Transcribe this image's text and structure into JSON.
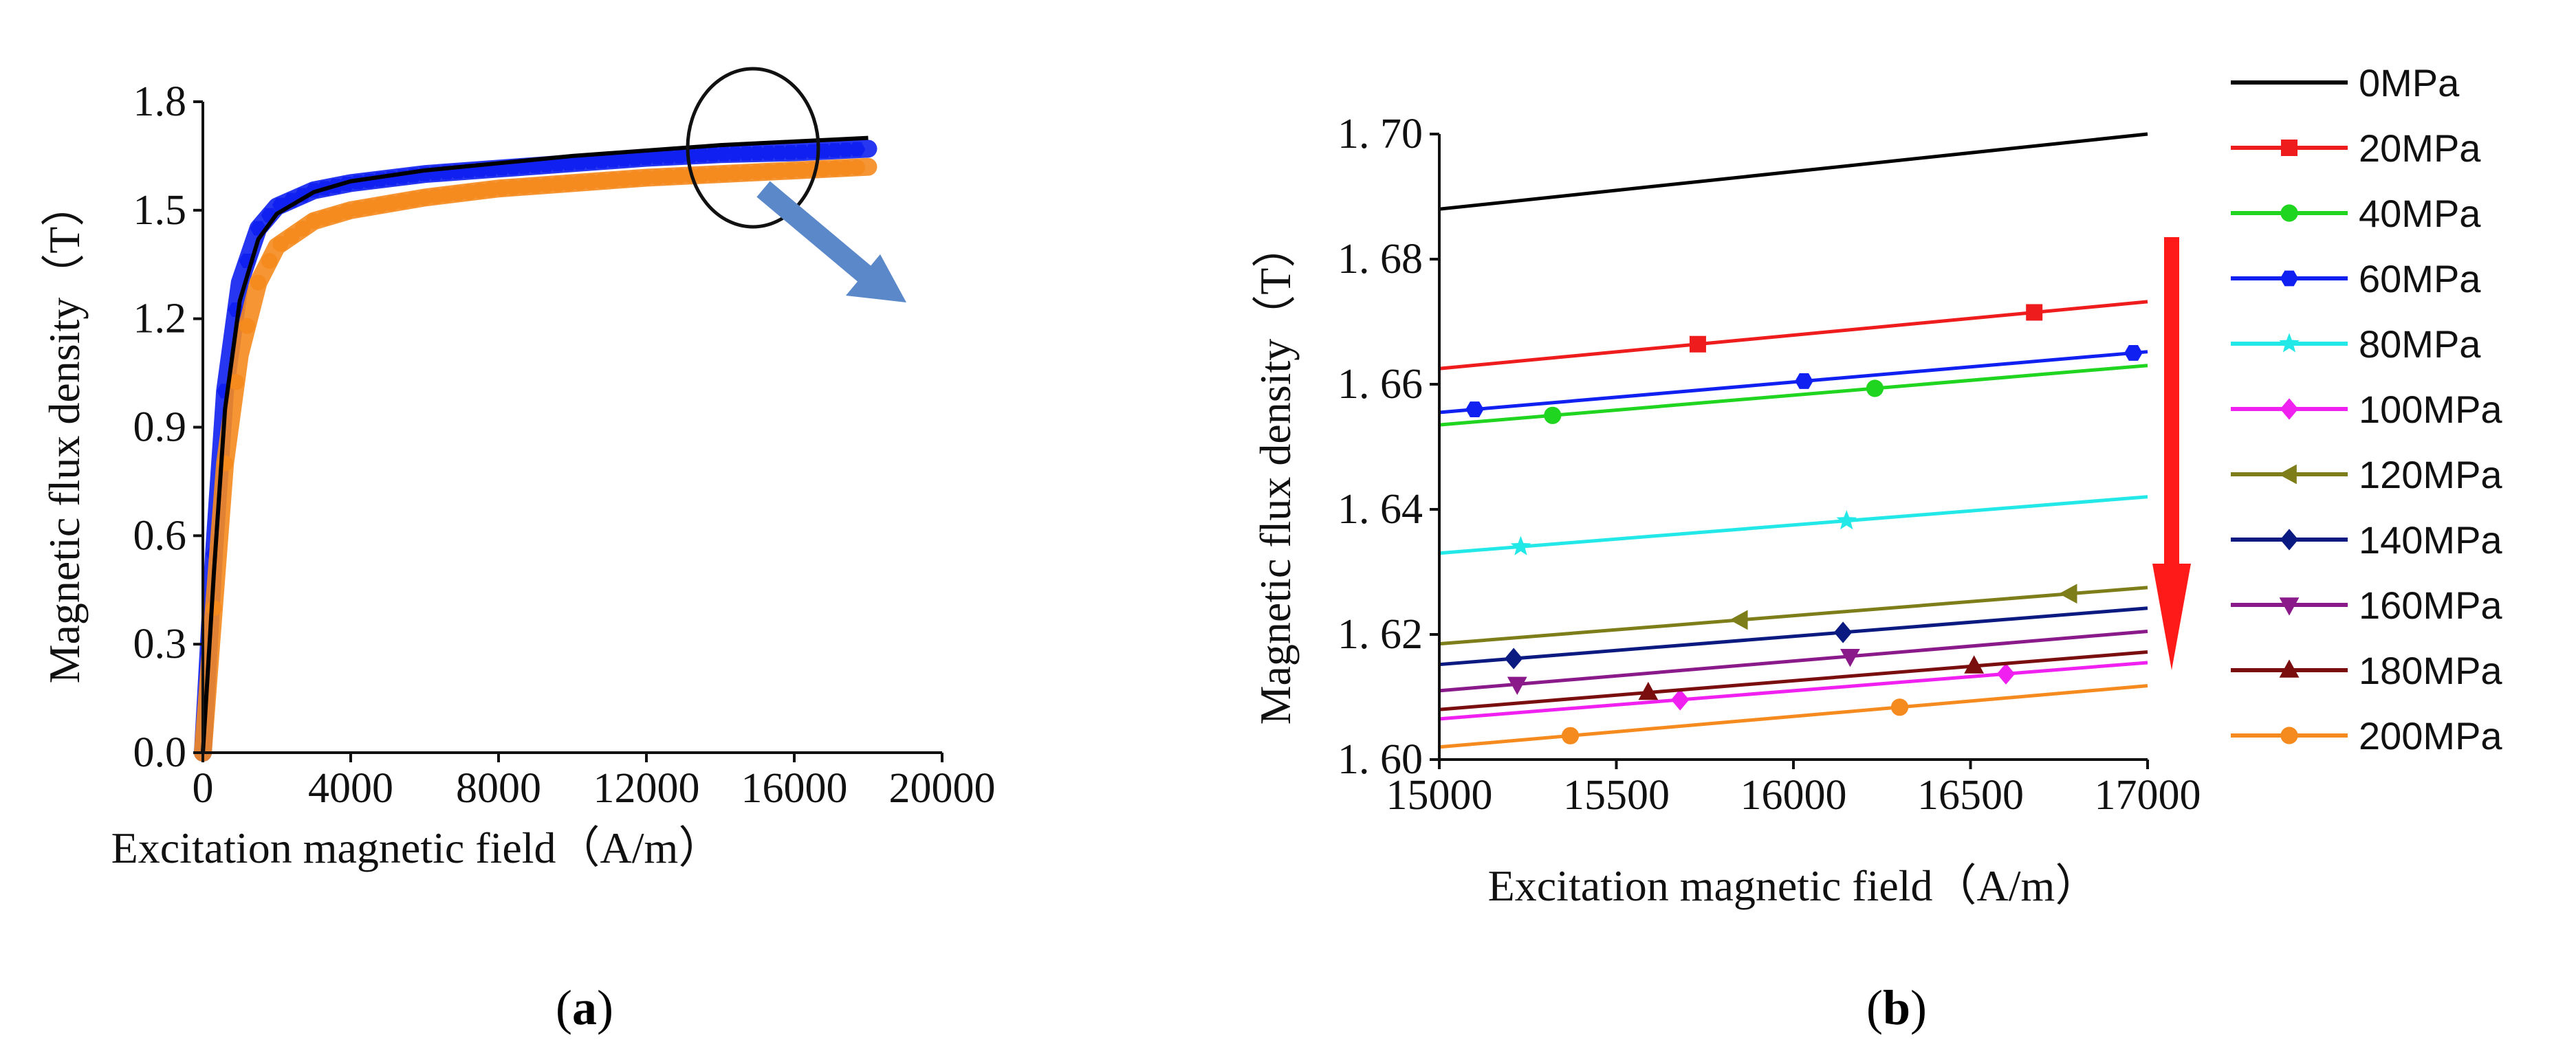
{
  "figure": {
    "panel_a_label": "a",
    "panel_b_label": "b"
  },
  "colors": {
    "0MPa": "#000000",
    "20MPa": "#ee1c1c",
    "40MPa": "#1fd51f",
    "60MPa": "#1020f0",
    "80MPa": "#22e8e8",
    "100MPa": "#f020f0",
    "120MPa": "#7d7d1a",
    "140MPa": "#0a1a80",
    "160MPa": "#8a1a8a",
    "180MPa": "#7a0e0e",
    "200MPa": "#f58a1e",
    "arrow_blue": "#5a88c8",
    "arrow_red": "#ff1a1a"
  },
  "chart_data": [
    {
      "id": "a",
      "type": "line",
      "title": "",
      "xlabel": "Excitation magnetic field（A/m）",
      "ylabel": "Magnetic flux density（T）",
      "xlim": [
        0,
        20000
      ],
      "ylim": [
        0,
        1.8
      ],
      "xticks": [
        0,
        4000,
        8000,
        12000,
        16000,
        20000
      ],
      "xtick_labels": [
        "0",
        "4000",
        "8000",
        "12000",
        "16000",
        "20000"
      ],
      "yticks": [
        0,
        0.3,
        0.6,
        0.9,
        1.2,
        1.5,
        1.8
      ],
      "ytick_labels": [
        "0.0",
        "0.3",
        "0.6",
        "0.9",
        "1.2",
        "1.5",
        "1.8"
      ],
      "annotation": "circle around 16000 A/m region with arrow pointing to panel (b)",
      "series": [
        {
          "name": "0MPa",
          "x": [
            0,
            300,
            600,
            1000,
            1500,
            2000,
            3000,
            4000,
            6000,
            8000,
            10000,
            12000,
            14000,
            16000,
            18000
          ],
          "y": [
            0,
            0.5,
            0.95,
            1.25,
            1.42,
            1.49,
            1.55,
            1.58,
            1.61,
            1.63,
            1.65,
            1.665,
            1.68,
            1.69,
            1.7
          ]
        },
        {
          "name": "60MPa",
          "x": [
            0,
            300,
            600,
            1000,
            1500,
            2000,
            3000,
            4000,
            6000,
            8000,
            10000,
            12000,
            14000,
            16000,
            18000
          ],
          "y": [
            0,
            0.55,
            1.0,
            1.3,
            1.45,
            1.51,
            1.555,
            1.575,
            1.6,
            1.615,
            1.63,
            1.645,
            1.655,
            1.66,
            1.67
          ]
        },
        {
          "name": "200MPa",
          "x": [
            0,
            300,
            600,
            1000,
            1500,
            2000,
            3000,
            4000,
            6000,
            8000,
            10000,
            12000,
            14000,
            16000,
            18000
          ],
          "y": [
            0,
            0.4,
            0.8,
            1.1,
            1.3,
            1.4,
            1.47,
            1.5,
            1.535,
            1.56,
            1.575,
            1.59,
            1.6,
            1.61,
            1.62
          ]
        }
      ]
    },
    {
      "id": "b",
      "type": "line",
      "title": "",
      "xlabel": "Excitation magnetic field（A/m）",
      "ylabel": "Magnetic flux density（T）",
      "xlim": [
        15000,
        17000
      ],
      "ylim": [
        1.6,
        1.7
      ],
      "xticks": [
        15000,
        15500,
        16000,
        16500,
        17000
      ],
      "xtick_labels": [
        "15000",
        "15500",
        "16000",
        "16500",
        "17000"
      ],
      "yticks": [
        1.6,
        1.62,
        1.64,
        1.66,
        1.68,
        1.7
      ],
      "ytick_labels": [
        "1. 60",
        "1. 62",
        "1. 64",
        "1. 66",
        "1. 68",
        "1. 70"
      ],
      "legend_position": "right",
      "annotation": "red downward arrow indicating decreasing flux density with increasing stress",
      "series": [
        {
          "name": "0MPa",
          "marker": "none",
          "x": [
            15000,
            17000
          ],
          "y": [
            1.688,
            1.7
          ],
          "mx": []
        },
        {
          "name": "20MPa",
          "marker": "square",
          "x": [
            15000,
            17000
          ],
          "y": [
            1.6625,
            1.6732
          ],
          "mx": [
            15730,
            16680
          ]
        },
        {
          "name": "40MPa",
          "marker": "circle",
          "x": [
            15000,
            17000
          ],
          "y": [
            1.6535,
            1.663
          ],
          "mx": [
            15320,
            16230
          ]
        },
        {
          "name": "60MPa",
          "marker": "hexagon",
          "x": [
            15000,
            17000
          ],
          "y": [
            1.6555,
            1.6652
          ],
          "mx": [
            15100,
            16030,
            16960
          ]
        },
        {
          "name": "80MPa",
          "marker": "star",
          "x": [
            15000,
            17000
          ],
          "y": [
            1.633,
            1.642
          ],
          "mx": [
            15230,
            16150
          ]
        },
        {
          "name": "100MPa",
          "marker": "diamond",
          "x": [
            15000,
            17000
          ],
          "y": [
            1.6065,
            1.6155
          ],
          "mx": [
            15680,
            16600
          ]
        },
        {
          "name": "120MPa",
          "marker": "triangle-left",
          "x": [
            15000,
            17000
          ],
          "y": [
            1.6185,
            1.6275
          ],
          "mx": [
            15850,
            16780
          ]
        },
        {
          "name": "140MPa",
          "marker": "diamond",
          "x": [
            15000,
            17000
          ],
          "y": [
            1.6152,
            1.6242
          ],
          "mx": [
            15210,
            16140
          ]
        },
        {
          "name": "160MPa",
          "marker": "triangle-down",
          "x": [
            15000,
            17000
          ],
          "y": [
            1.611,
            1.6205
          ],
          "mx": [
            15220,
            16160
          ]
        },
        {
          "name": "180MPa",
          "marker": "triangle-up",
          "x": [
            15000,
            17000
          ],
          "y": [
            1.608,
            1.6172
          ],
          "mx": [
            15590,
            16510
          ]
        },
        {
          "name": "200MPa",
          "marker": "circle",
          "x": [
            15000,
            17000
          ],
          "y": [
            1.602,
            1.6118
          ],
          "mx": [
            15370,
            16300
          ]
        }
      ]
    }
  ]
}
